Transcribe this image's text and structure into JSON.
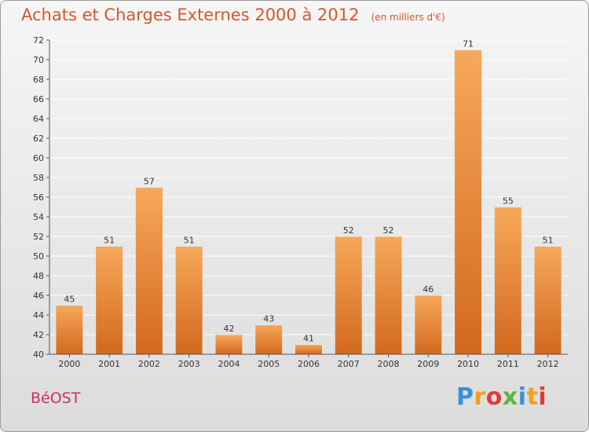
{
  "header": {
    "title": "Achats et Charges Externes 2000 à 2012",
    "subtitle": "(en milliers d'€)"
  },
  "footer": {
    "commune": "BéOST",
    "brand_letters": [
      "P",
      "r",
      "o",
      "x",
      "i",
      "t",
      "i"
    ]
  },
  "colors": {
    "bar_light": "#f7a85a",
    "bar_dark": "#d2691e",
    "grid": "#ffffff",
    "title": "#d2582d"
  },
  "chart_data": {
    "type": "bar",
    "title": "Achats et Charges Externes 2000 à 2012",
    "subtitle": "(en milliers d'€)",
    "xlabel": "",
    "ylabel": "",
    "categories": [
      "2000",
      "2001",
      "2002",
      "2003",
      "2004",
      "2005",
      "2006",
      "2007",
      "2008",
      "2009",
      "2010",
      "2011",
      "2012"
    ],
    "values": [
      45,
      51,
      57,
      51,
      42,
      43,
      41,
      52,
      52,
      46,
      71,
      55,
      51
    ],
    "ylim": [
      40,
      72
    ],
    "yticks": [
      40,
      42,
      44,
      46,
      48,
      50,
      52,
      54,
      56,
      58,
      60,
      62,
      64,
      66,
      68,
      70,
      72
    ],
    "grid": true
  }
}
